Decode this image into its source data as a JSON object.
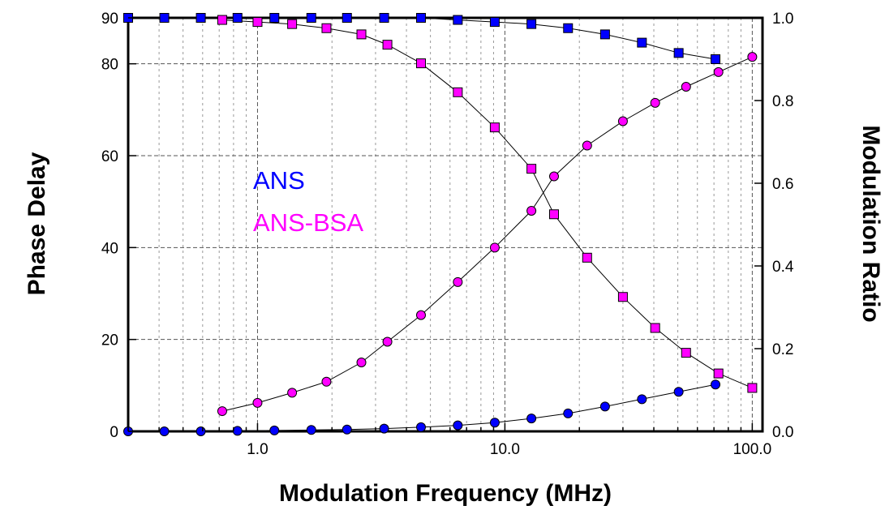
{
  "chart_data": {
    "type": "scatter",
    "title": "",
    "xlabel": "Modulation Frequency (MHz)",
    "ylabel_left": "Phase Delay",
    "ylabel_right": "Modulation Ratio",
    "xscale": "log",
    "xlim": [
      0.3,
      110
    ],
    "ylim_left": [
      0,
      90
    ],
    "ylim_right": [
      0,
      1.0
    ],
    "xticks": [
      {
        "value": 1,
        "label": "1.0"
      },
      {
        "value": 10,
        "label": "10.0"
      },
      {
        "value": 100,
        "label": "100.0"
      }
    ],
    "yticks_left": [
      {
        "value": 0,
        "label": "0"
      },
      {
        "value": 20,
        "label": "20"
      },
      {
        "value": 40,
        "label": "40"
      },
      {
        "value": 60,
        "label": "60"
      },
      {
        "value": 80,
        "label": "80"
      },
      {
        "value": 90,
        "label": "90"
      }
    ],
    "yticks_right": [
      {
        "value": 0,
        "label": "0.0"
      },
      {
        "value": 0.2,
        "label": "0.2"
      },
      {
        "value": 0.4,
        "label": "0.4"
      },
      {
        "value": 0.6,
        "label": "0.6"
      },
      {
        "value": 0.8,
        "label": "0.8"
      },
      {
        "value": 1.0,
        "label": "1.0"
      }
    ],
    "grid": true,
    "legend_placement": "center-left",
    "series": [
      {
        "name": "ANS",
        "color": "#0000ff",
        "quantity": "Modulation Ratio",
        "axis": "right",
        "marker": "square",
        "x": [
          0.3,
          0.42,
          0.59,
          0.83,
          1.17,
          1.65,
          2.3,
          3.25,
          4.58,
          6.45,
          9.1,
          12.8,
          18.0,
          25.4,
          35.8,
          50.4,
          71.0
        ],
        "y": [
          1.0,
          1.0,
          1.0,
          1.0,
          1.0,
          1.0,
          1.0,
          1.0,
          1.0,
          0.995,
          0.99,
          0.985,
          0.975,
          0.96,
          0.94,
          0.915,
          0.9
        ]
      },
      {
        "name": "ANS",
        "color": "#0000ff",
        "quantity": "Phase Delay",
        "axis": "left",
        "marker": "circle",
        "x": [
          0.3,
          0.42,
          0.59,
          0.83,
          1.17,
          1.65,
          2.3,
          3.25,
          4.58,
          6.45,
          9.1,
          12.8,
          18.0,
          25.4,
          35.8,
          50.4,
          71.0
        ],
        "y": [
          0,
          0,
          0,
          0.1,
          0.2,
          0.3,
          0.4,
          0.6,
          0.9,
          1.3,
          1.9,
          2.8,
          3.9,
          5.4,
          7.0,
          8.6,
          10.2
        ]
      },
      {
        "name": "ANS-BSA",
        "color": "#ff00ff",
        "quantity": "Modulation Ratio",
        "axis": "right",
        "marker": "square",
        "x": [
          0.72,
          1.0,
          1.38,
          1.9,
          2.63,
          3.35,
          4.58,
          6.45,
          9.1,
          12.8,
          15.8,
          21.5,
          30.0,
          40.5,
          54.0,
          73.0,
          100.0
        ],
        "y": [
          0.995,
          0.99,
          0.985,
          0.975,
          0.96,
          0.935,
          0.89,
          0.82,
          0.735,
          0.635,
          0.525,
          0.42,
          0.325,
          0.25,
          0.19,
          0.14,
          0.105
        ]
      },
      {
        "name": "ANS-BSA",
        "color": "#ff00ff",
        "quantity": "Phase Delay",
        "axis": "left",
        "marker": "circle",
        "x": [
          0.72,
          1.0,
          1.38,
          1.9,
          2.63,
          3.35,
          4.58,
          6.45,
          9.1,
          12.8,
          15.8,
          21.5,
          30.0,
          40.5,
          54.0,
          73.0,
          100.0
        ],
        "y": [
          4.4,
          6.2,
          8.4,
          10.8,
          15.0,
          19.5,
          25.3,
          32.5,
          40.0,
          48.0,
          55.5,
          62.2,
          67.5,
          71.5,
          75.0,
          78.2,
          81.5
        ]
      }
    ]
  }
}
